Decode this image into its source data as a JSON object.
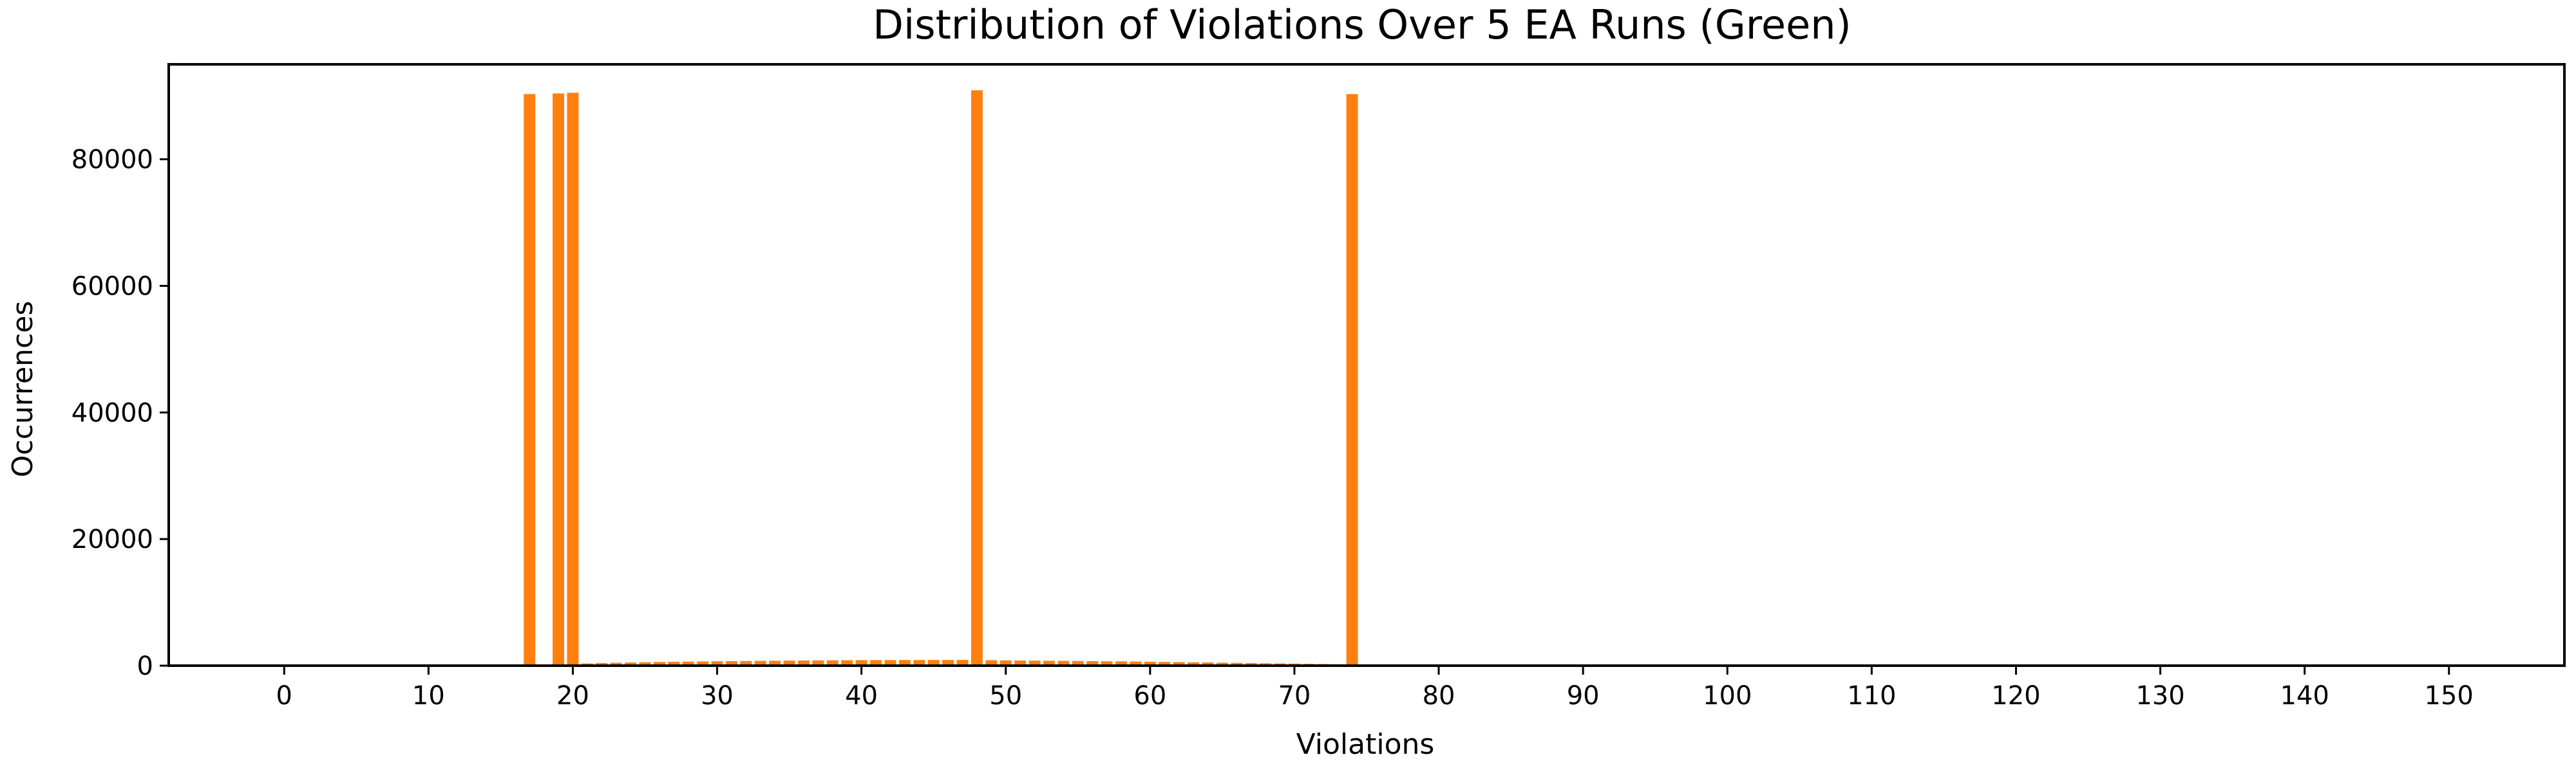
{
  "colors": {
    "bar": "#ff7f0e",
    "axis": "#000000",
    "background": "#ffffff"
  },
  "chart_data": {
    "type": "bar",
    "title": "Distribution of Violations Over 5 EA Runs (Green)",
    "xlabel": "Violations",
    "ylabel": "Occurrences",
    "xlim": [
      -8,
      158
    ],
    "ylim": [
      0,
      95000
    ],
    "xticks": [
      0,
      10,
      20,
      30,
      40,
      50,
      60,
      70,
      80,
      90,
      100,
      110,
      120,
      130,
      140,
      150
    ],
    "yticks": [
      0,
      20000,
      40000,
      60000,
      80000
    ],
    "grid": false,
    "legend": "none",
    "x": [
      15,
      16,
      17,
      18,
      19,
      20,
      21,
      22,
      23,
      24,
      25,
      26,
      27,
      28,
      29,
      30,
      31,
      32,
      33,
      34,
      35,
      36,
      37,
      38,
      39,
      40,
      41,
      42,
      43,
      44,
      45,
      46,
      47,
      48,
      49,
      50,
      51,
      52,
      53,
      54,
      55,
      56,
      57,
      58,
      59,
      60,
      61,
      62,
      63,
      64,
      65,
      66,
      67,
      68,
      69,
      70,
      71,
      72,
      73,
      74,
      75,
      76,
      77,
      78,
      79
    ],
    "values": [
      30,
      80,
      90300,
      120,
      90400,
      90500,
      350,
      420,
      460,
      500,
      540,
      580,
      610,
      640,
      670,
      700,
      720,
      740,
      760,
      780,
      800,
      820,
      840,
      850,
      860,
      870,
      880,
      880,
      890,
      890,
      900,
      900,
      910,
      90900,
      860,
      840,
      820,
      800,
      780,
      760,
      740,
      720,
      700,
      680,
      650,
      620,
      590,
      560,
      530,
      500,
      470,
      440,
      410,
      380,
      350,
      320,
      290,
      260,
      230,
      90300,
      170,
      130,
      90,
      50,
      20
    ]
  }
}
